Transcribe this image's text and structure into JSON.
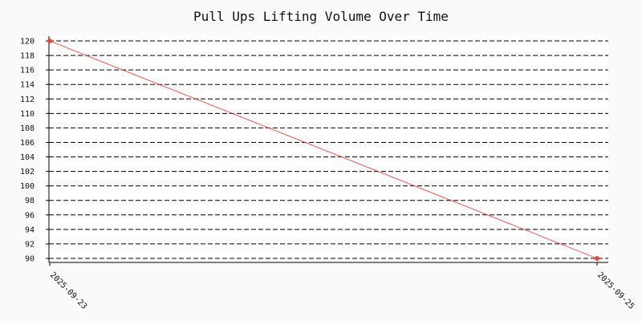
{
  "chart_data": {
    "type": "line",
    "title": "Pull Ups Lifting Volume Over Time",
    "xlabel": "",
    "ylabel": "",
    "x": [
      "2025-09-23",
      "2025-09-25"
    ],
    "series": [
      {
        "values": [
          120,
          90
        ],
        "color": "#f0433a"
      }
    ],
    "ylim": [
      90,
      120
    ],
    "yticks": [
      90,
      92,
      94,
      96,
      98,
      100,
      102,
      104,
      106,
      108,
      110,
      112,
      114,
      116,
      118,
      120
    ],
    "grid": true,
    "grid_style": "dashed",
    "plot_background": "#ffffff",
    "page_background": "#fafafa"
  }
}
